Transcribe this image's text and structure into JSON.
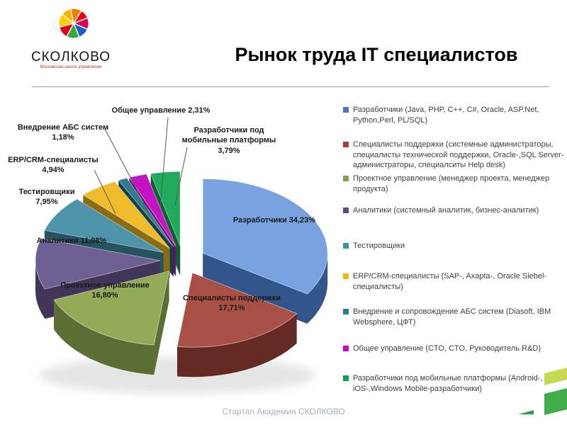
{
  "slide": {
    "title": "Рынок труда IT специалистов",
    "footer": "Стартап Академия СКОЛКОВО"
  },
  "logo": {
    "name": "СКОЛКОВО",
    "tagline": "Московская школа управления"
  },
  "chart_data": {
    "type": "pie",
    "style": "3d-exploded",
    "title": "Рынок труда IT специалистов",
    "unit": "%",
    "legend_position": "right",
    "slices": [
      {
        "id": "developers",
        "label": "Разработчики",
        "value": 34.23,
        "value_text": "34,23%",
        "legend_label": "Разработчики (Java, PHP, C++, C#, Oracle, ASP.Net, Python,Perl, PL/SQL)",
        "color": "#4a7ebb",
        "top": "#78a3e0",
        "side": "#32568c"
      },
      {
        "id": "support",
        "label": "Специалисты поддержки",
        "value": 17.71,
        "value_text": "17,71%",
        "legend_label": "Специалисты поддержки (системные администраторы, специалисты технической поддержки, Oracle-,SQL Server-администраторы, специалситы Help desk)",
        "color": "#9e3f3a",
        "top": "#a85046",
        "side": "#662a24"
      },
      {
        "id": "project-mgmt",
        "label": "Проектное управление",
        "value": 16.8,
        "value_text": "16,80%",
        "legend_label": "Проектное управление (менеджер проекта, менеджер продукта)",
        "color": "#84a04a",
        "top": "#93aa56",
        "side": "#5b6f35"
      },
      {
        "id": "analysts",
        "label": "Аналитики",
        "value": 11.08,
        "value_text": "11,08%",
        "legend_label": "Аналитики (системный аналитик, бизнес-аналитик)",
        "color": "#5f4a7d",
        "top": "#6f6093",
        "side": "#413659"
      },
      {
        "id": "testers",
        "label": "Тестировщики",
        "value": 7.95,
        "value_text": "7,95%",
        "legend_label": "Тестировщики",
        "color": "#3b8fa8",
        "top": "#4d93a9",
        "side": "#27525f"
      },
      {
        "id": "erp-crm",
        "label": "ERP/CRM-специалисты",
        "value": 4.94,
        "value_text": "4,94%",
        "legend_label": "ERP/CRM-специалисты  (SAP-, Axapta-, Oracle Siebel-специалисты)",
        "color": "#e7b71e",
        "top": "#eebc2a",
        "side": "#8a6c12"
      },
      {
        "id": "abs-systems",
        "label": "Внедрение АБС систем",
        "value": 1.18,
        "value_text": "1,18%",
        "legend_label": "Внедрение и сопровождение АБС систем (Diasoft, IBM Websphere,  ЦФТ)",
        "color": "#2a7a8c",
        "top": "#2f7e90",
        "side": "#163e48"
      },
      {
        "id": "general-mgmt",
        "label": "Общее управление",
        "value": 2.31,
        "value_text": "2,31%",
        "legend_label": "Общее управление (CTO, CTO,  Руководитель R&D)",
        "color": "#c400c4",
        "top": "#c214c3",
        "side": "#740b74"
      },
      {
        "id": "mobile-developers",
        "label": "Разработчики под мобильные платформы",
        "value": 3.79,
        "value_text": "3,79%",
        "legend_label": "Разработчики под мобильные платформы (Android-, iOS-,Windows Mobile-разработчики)",
        "color": "#12a053",
        "top": "#21aa5c",
        "side": "#0d5e33"
      }
    ]
  }
}
